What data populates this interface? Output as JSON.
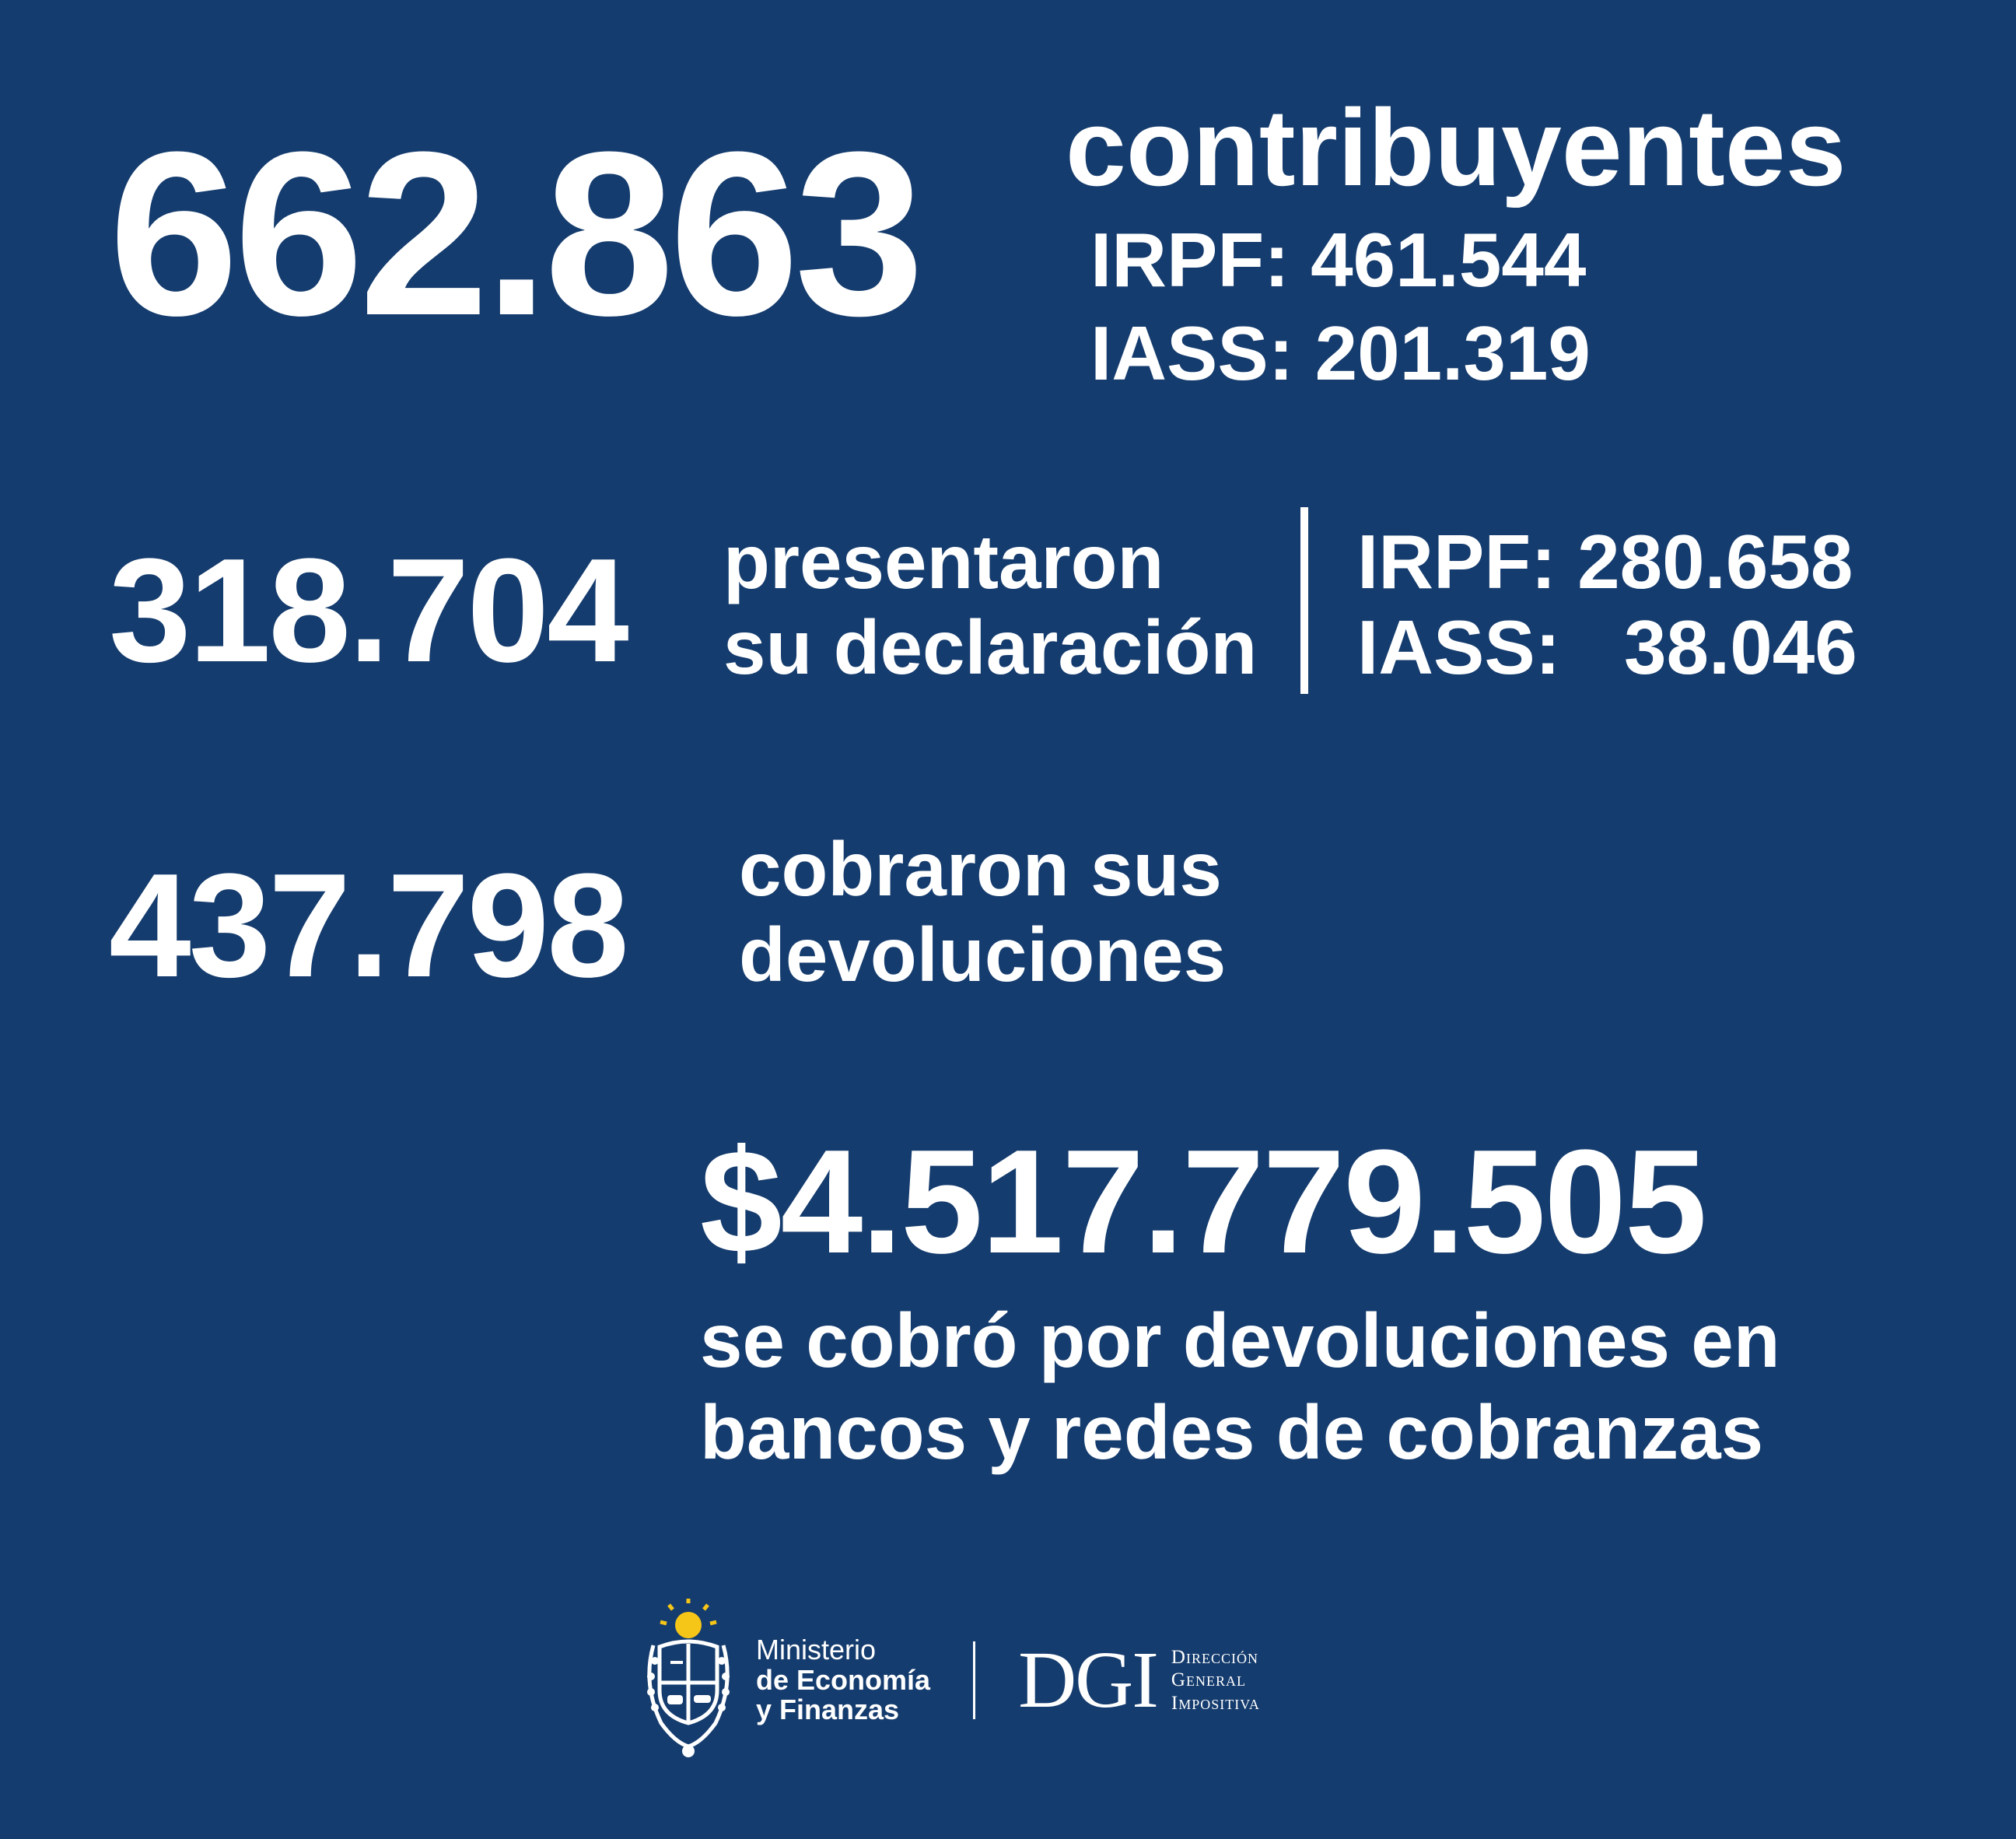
{
  "contribuyentes": {
    "total": "662.863",
    "label": "contribuyentes",
    "irpf": "IRPF: 461.544",
    "iass": "IASS: 201.319"
  },
  "declaraciones": {
    "total": "318.704",
    "label_line1": "presentaron",
    "label_line2": "su declaración",
    "irpf": "IRPF: 280.658",
    "iass": "IASS:   38.046"
  },
  "devoluciones": {
    "total": "437.798",
    "label_line1": "cobraron sus",
    "label_line2": "devoluciones"
  },
  "monto": {
    "total": "$4.517.779.505",
    "label_line1": "se cobró por devoluciones en",
    "label_line2": "bancos y redes de cobranzas"
  },
  "footer": {
    "mef_line1": "Ministerio",
    "mef_line2": "de Economía",
    "mef_line3": "y Finanzas",
    "dgi_logo": "DGI",
    "dgi_line1": "Dirección",
    "dgi_line2": "General",
    "dgi_line3": "Impositiva"
  },
  "colors": {
    "background": "#153c6e",
    "text": "#ffffff",
    "sun": "#f5c518"
  },
  "icons": [
    "uruguay-coat-of-arms-icon"
  ]
}
